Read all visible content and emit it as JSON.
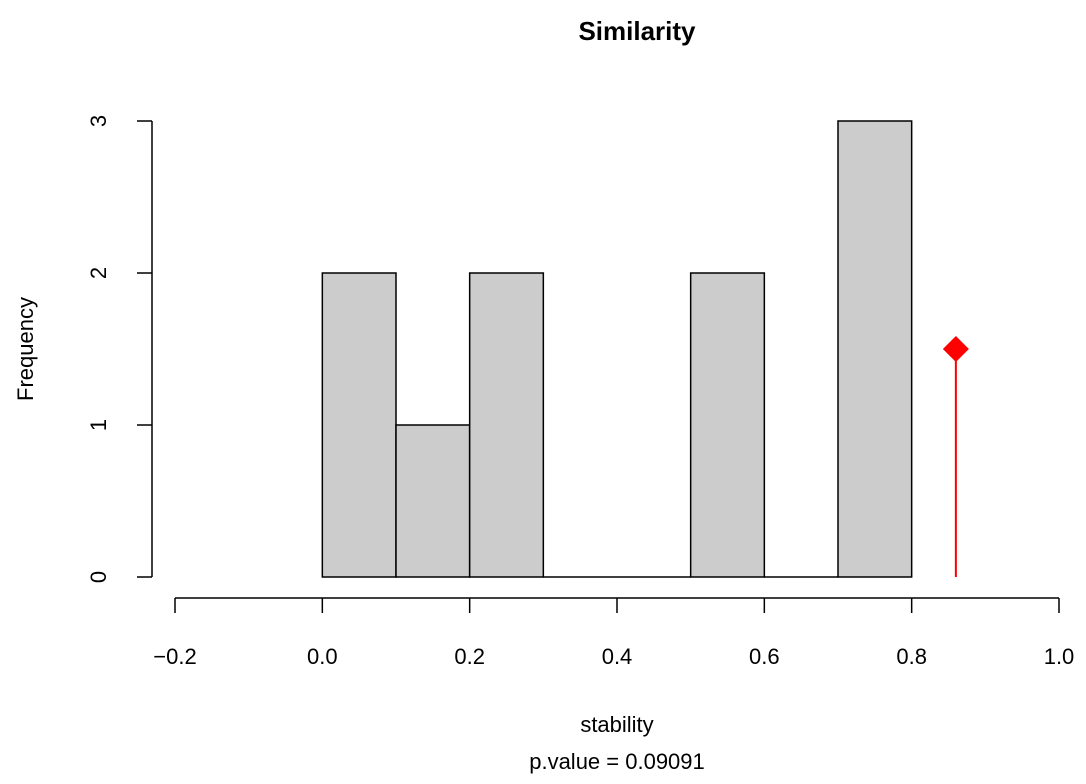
{
  "chart_data": {
    "type": "bar",
    "title": "Similarity",
    "xlabel": "stability",
    "ylabel": "Frequency",
    "subtitle": "p.value =  0.09091",
    "xlim": [
      -0.2,
      1.0
    ],
    "ylim": [
      0,
      3
    ],
    "x_ticks": [
      "−0.2",
      "0.0",
      "0.2",
      "0.4",
      "0.6",
      "0.8",
      "1.0"
    ],
    "y_ticks": [
      "0",
      "1",
      "2",
      "3"
    ],
    "bins": [
      {
        "from": 0.0,
        "to": 0.1,
        "count": 2
      },
      {
        "from": 0.1,
        "to": 0.2,
        "count": 1
      },
      {
        "from": 0.2,
        "to": 0.3,
        "count": 2
      },
      {
        "from": 0.3,
        "to": 0.4,
        "count": 0
      },
      {
        "from": 0.4,
        "to": 0.5,
        "count": 0
      },
      {
        "from": 0.5,
        "to": 0.6,
        "count": 2
      },
      {
        "from": 0.6,
        "to": 0.7,
        "count": 0
      },
      {
        "from": 0.7,
        "to": 0.8,
        "count": 3
      }
    ],
    "observed": {
      "x": 0.86,
      "y": 1.5
    },
    "grid": false,
    "colors": {
      "bar_fill": "#cccccc",
      "bar_stroke": "#000000",
      "marker": "#ff0000"
    }
  }
}
